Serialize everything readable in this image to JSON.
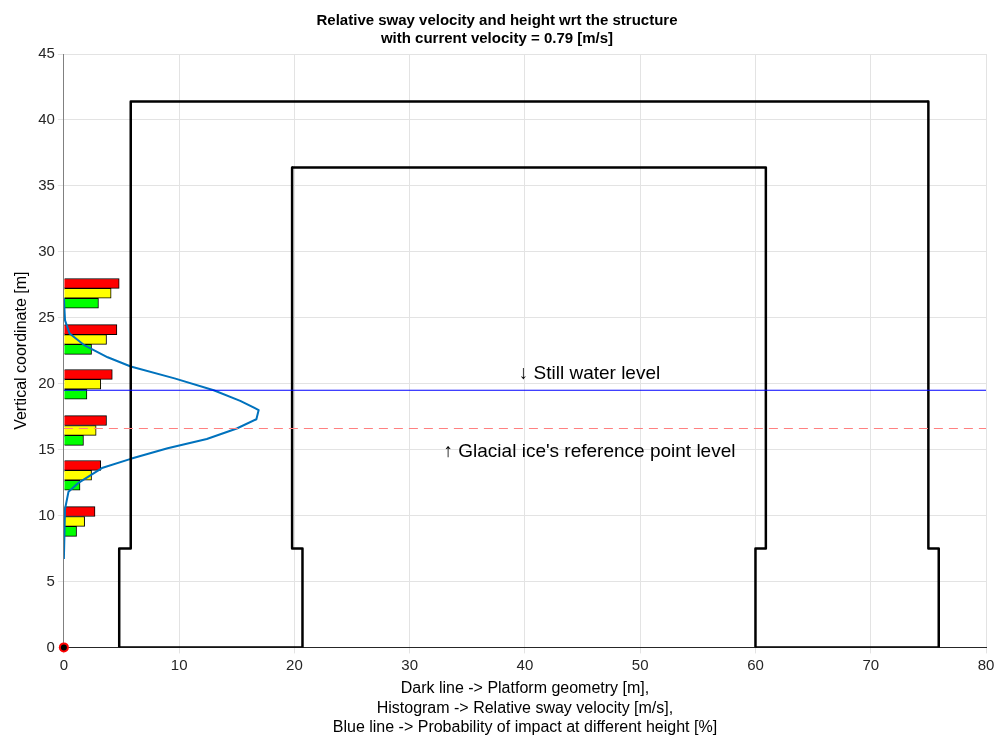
{
  "chart_data": {
    "type": "bar",
    "orientation": "horizontal",
    "title": [
      "Relative sway velocity and height wrt the structure",
      "with current velocity = 0.79 [m/s]"
    ],
    "xlabel": [
      "Dark line -> Platform geometry [m],",
      "Histogram -> Relative sway velocity [m/s],",
      "Blue line -> Probability of impact at different height [%]"
    ],
    "ylabel": "Vertical coordinate [m]",
    "xlim": [
      0,
      80
    ],
    "xticks": [
      0,
      10,
      20,
      30,
      40,
      50,
      60,
      70,
      80
    ],
    "ylim": [
      0,
      45
    ],
    "yticks": [
      0,
      5,
      10,
      15,
      20,
      25,
      30,
      35,
      40,
      45
    ],
    "grid": true,
    "legend": false,
    "series": [
      {
        "type": "line",
        "color": "#000000",
        "x": [
          0,
          7.5,
          7.5,
          41.4,
          41.4
        ],
        "values": [
          4.8,
          4.8,
          5.8,
          5.8,
          75
        ]
      },
      {
        "type": "line",
        "color": "#000000",
        "x": [
          41.4,
          7.5,
          7.5,
          0,
          0
        ],
        "values": [
          75,
          75,
          75.9,
          75.9,
          60
        ]
      },
      {
        "type": "line",
        "color": "#000000",
        "x": [
          0,
          7.5,
          7.5,
          36.4,
          36.4
        ],
        "values": [
          60,
          60,
          60.9,
          60.9,
          19.8
        ]
      },
      {
        "type": "line",
        "color": "#000000",
        "x": [
          36.4,
          7.5,
          7.5,
          0,
          0
        ],
        "values": [
          19.8,
          19.8,
          20.7,
          20.7,
          4.8
        ]
      },
      {
        "color": "#ff0000",
        "x": [
          27.6,
          24.1,
          20.7,
          17.2,
          13.8,
          10.3
        ],
        "values": [
          4.8,
          4.6,
          4.2,
          3.7,
          3.2,
          2.7
        ]
      },
      {
        "color": "#ffff00",
        "x": [
          26.85,
          23.35,
          19.95,
          16.45,
          13.05,
          9.55
        ],
        "values": [
          4.1,
          3.7,
          3.2,
          2.8,
          2.4,
          1.8
        ]
      },
      {
        "color": "#00ff00",
        "x": [
          26.1,
          22.6,
          19.2,
          15.7,
          12.3,
          8.8
        ],
        "values": [
          3.0,
          2.4,
          2.0,
          1.7,
          1.4,
          1.1
        ]
      },
      {
        "type": "line",
        "color": "#0072bd",
        "x": [
          26.5,
          24.8,
          23.8,
          22.9,
          22.0,
          21.3,
          20.4,
          19.5,
          18.7,
          18.0,
          17.3,
          16.6,
          15.8,
          15.1,
          14.3,
          13.6,
          12.5,
          11.8,
          10.5,
          6.7
        ],
        "values": [
          0,
          0.1,
          0.5,
          1.8,
          3.8,
          5.8,
          9.6,
          13.0,
          15.3,
          16.9,
          16.7,
          15.0,
          12.4,
          9.0,
          5.8,
          3.3,
          1.3,
          0.4,
          0.1,
          0
        ]
      },
      {
        "type": "scatter",
        "color": "#ff0000",
        "marker": "circle",
        "x": [
          0
        ],
        "values": [
          0
        ]
      }
    ],
    "ref_lines": [
      {
        "axis": "y",
        "value": 19.5,
        "color": "#0000ff",
        "line_style": "solid",
        "label": "↓ Still water level"
      },
      {
        "axis": "y",
        "value": 16.6,
        "color": "#ff8080",
        "line_style": "dashed",
        "label": "↑ Glacial ice's reference point level"
      }
    ]
  }
}
